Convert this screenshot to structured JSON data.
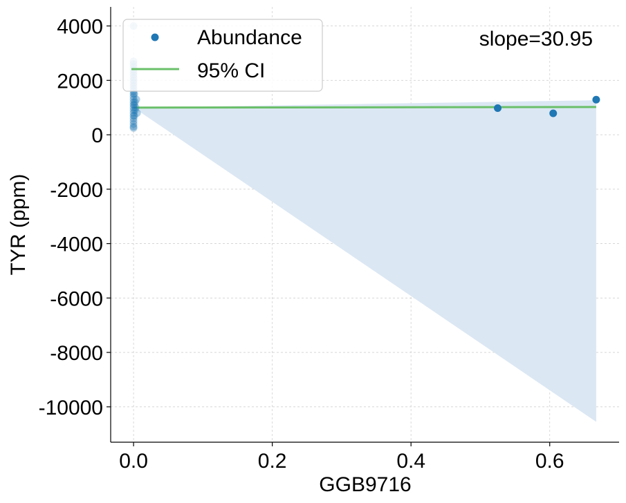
{
  "chart_data": {
    "type": "scatter",
    "xlabel": "GGB9716",
    "ylabel": "TYR (ppm)",
    "xlim": [
      -0.033,
      0.7
    ],
    "ylim": [
      -11300,
      4700
    ],
    "x_ticks": [
      0.0,
      0.2,
      0.4,
      0.6
    ],
    "x_tick_labels": [
      "0.0",
      "0.2",
      "0.4",
      "0.6"
    ],
    "y_ticks": [
      4000,
      2000,
      0,
      -2000,
      -4000,
      -6000,
      -8000,
      -10000
    ],
    "y_tick_labels": [
      "4000",
      "2000",
      "0",
      "-2000",
      "-4000",
      "-6000",
      "-8000",
      "-10000"
    ],
    "grid": true,
    "legend_position": "top-left",
    "annotation": "slope=30.95",
    "series": [
      {
        "name": "Abundance",
        "kind": "scatter",
        "color": "#1f77b4",
        "points": [
          {
            "x": 0.0,
            "y": 4000
          },
          {
            "x": 0.0,
            "y": 2700
          },
          {
            "x": 0.0,
            "y": 2600
          },
          {
            "x": 0.0,
            "y": 2500
          },
          {
            "x": 0.0,
            "y": 2400
          },
          {
            "x": 0.0,
            "y": 2300
          },
          {
            "x": 0.0,
            "y": 2200
          },
          {
            "x": 0.0,
            "y": 2100
          },
          {
            "x": 0.0,
            "y": 2000
          },
          {
            "x": 0.0,
            "y": 1900
          },
          {
            "x": 0.0,
            "y": 1800
          },
          {
            "x": 0.0,
            "y": 1700
          },
          {
            "x": 0.0,
            "y": 1600
          },
          {
            "x": 0.0,
            "y": 1500
          },
          {
            "x": 0.0,
            "y": 1400
          },
          {
            "x": 0.0,
            "y": 1300
          },
          {
            "x": 0.0,
            "y": 1200
          },
          {
            "x": 0.0,
            "y": 1100
          },
          {
            "x": 0.0,
            "y": 1000
          },
          {
            "x": 0.0,
            "y": 900
          },
          {
            "x": 0.0,
            "y": 800
          },
          {
            "x": 0.0,
            "y": 700
          },
          {
            "x": 0.0,
            "y": 600
          },
          {
            "x": 0.0,
            "y": 500
          },
          {
            "x": 0.0,
            "y": 400
          },
          {
            "x": 0.0,
            "y": 300
          },
          {
            "x": 0.0,
            "y": 250
          },
          {
            "x": 0.001,
            "y": 1500
          },
          {
            "x": 0.001,
            "y": 1100
          },
          {
            "x": 0.001,
            "y": 700
          },
          {
            "x": 0.002,
            "y": 1200
          },
          {
            "x": 0.002,
            "y": 900
          },
          {
            "x": 0.003,
            "y": 1000
          },
          {
            "x": 0.004,
            "y": 1300
          },
          {
            "x": 0.005,
            "y": 800
          },
          {
            "x": 0.525,
            "y": 980
          },
          {
            "x": 0.605,
            "y": 790
          },
          {
            "x": 0.667,
            "y": 1290
          }
        ]
      },
      {
        "name": "95% CI",
        "kind": "line",
        "color": "#6abf69",
        "x": [
          0.0,
          0.667
        ],
        "y": [
          1000,
          1020
        ]
      }
    ],
    "confidence_band": {
      "color": "#dbe7f3",
      "upper": [
        [
          0.0,
          1000
        ],
        [
          0.667,
          1270
        ]
      ],
      "lower": [
        [
          0.0,
          1000
        ],
        [
          0.667,
          -10550
        ]
      ]
    }
  }
}
